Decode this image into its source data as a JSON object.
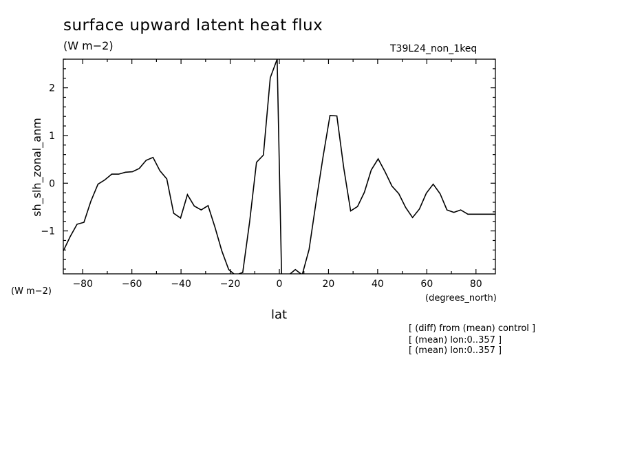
{
  "header": {
    "title": "surface upward latent heat flux",
    "units": "(W m−2)",
    "run": "T39L24_non_1keq"
  },
  "footer": {
    "units_left": "(W m−2)",
    "x_units": "(degrees_north)",
    "notes": [
      "[ (diff) from (mean) control ]",
      "[ (mean) lon:0..357 ]",
      "[ (mean) lon:0..357 ]"
    ]
  },
  "chart_data": {
    "type": "line",
    "title": "surface upward latent heat flux",
    "xlabel": "lat",
    "ylabel": "sh_slh_zonal_anm",
    "xlim": [
      -87.9,
      87.9
    ],
    "ylim": [
      -1.9,
      2.6
    ],
    "x_ticks": [
      -80,
      -60,
      -40,
      -20,
      0,
      20,
      40,
      60,
      80
    ],
    "y_ticks": [
      -1,
      0,
      1,
      2
    ],
    "grid": false,
    "series": [
      {
        "x": [
          -87.9,
          -85.1,
          -82.3,
          -79.5,
          -76.7,
          -73.8,
          -71.0,
          -68.2,
          -65.4,
          -62.6,
          -59.8,
          -57.0,
          -54.2,
          -51.4,
          -48.6,
          -45.8,
          -43.0,
          -40.2,
          -37.4,
          -34.6,
          -31.8,
          -29.0,
          -26.2,
          -23.4,
          -20.6,
          -17.8,
          -14.9,
          -12.1,
          -9.3,
          -6.5,
          -3.7,
          -0.9,
          0.9,
          3.7,
          6.5,
          9.3,
          12.1,
          14.9,
          17.8,
          20.6,
          23.4,
          26.2,
          29.0,
          31.8,
          34.6,
          37.4,
          40.2,
          43.0,
          45.8,
          48.6,
          51.4,
          54.2,
          57.0,
          59.8,
          62.6,
          65.4,
          68.2,
          71.0,
          73.8,
          76.7,
          79.5,
          82.3,
          85.1,
          87.9
        ],
        "y": [
          -1.42,
          -1.12,
          -0.86,
          -0.82,
          -0.38,
          -0.02,
          0.07,
          0.19,
          0.19,
          0.23,
          0.24,
          0.31,
          0.48,
          0.54,
          0.26,
          0.09,
          -0.63,
          -0.73,
          -0.24,
          -0.48,
          -0.56,
          -0.47,
          -0.92,
          -1.42,
          -1.81,
          -1.93,
          -1.87,
          -0.81,
          0.44,
          0.59,
          2.21,
          2.6,
          -1.9,
          -1.93,
          -1.81,
          -1.92,
          -1.39,
          -0.41,
          0.56,
          1.42,
          1.41,
          0.32,
          -0.58,
          -0.49,
          -0.19,
          0.28,
          0.51,
          0.24,
          -0.06,
          -0.22,
          -0.51,
          -0.72,
          -0.54,
          -0.21,
          -0.02,
          -0.22,
          -0.56,
          -0.61,
          -0.56,
          -0.65,
          -0.65,
          -0.65,
          -0.65,
          -0.65
        ]
      }
    ]
  }
}
